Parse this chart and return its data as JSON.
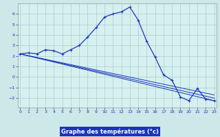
{
  "xlabel": "Graphe des températures (°c)",
  "background_color": "#cce8e8",
  "plot_bg_color": "#d6f0f0",
  "line_color": "#1a35bb",
  "grid_color": "#aacccc",
  "axis_label_bg": "#1a35bb",
  "axis_label_fg": "#ffffff",
  "x_ticks": [
    0,
    1,
    2,
    3,
    4,
    5,
    6,
    7,
    8,
    9,
    10,
    11,
    12,
    13,
    14,
    15,
    16,
    17,
    18,
    19,
    20,
    21,
    22,
    23
  ],
  "y_ticks": [
    -2,
    -1,
    0,
    1,
    2,
    3,
    4,
    5,
    6
  ],
  "xlim": [
    -0.3,
    23.3
  ],
  "ylim": [
    -2.9,
    7.0
  ],
  "main_series_x": [
    0,
    1,
    2,
    3,
    4,
    5,
    6,
    7,
    8,
    9,
    10,
    11,
    12,
    13,
    14,
    15,
    16,
    17,
    18,
    19,
    20,
    21,
    22,
    23
  ],
  "main_series_y": [
    2.2,
    2.3,
    2.2,
    2.6,
    2.5,
    2.2,
    2.6,
    3.0,
    3.8,
    4.7,
    5.7,
    6.0,
    6.2,
    6.65,
    5.4,
    3.4,
    1.9,
    0.2,
    -0.3,
    -1.9,
    -2.25,
    -1.1,
    -2.1,
    -2.25
  ],
  "linear_series": [
    {
      "x": [
        0,
        23
      ],
      "y": [
        2.2,
        -2.25
      ]
    },
    {
      "x": [
        0,
        23
      ],
      "y": [
        2.2,
        -1.7
      ]
    },
    {
      "x": [
        0,
        23
      ],
      "y": [
        2.2,
        -2.0
      ]
    }
  ]
}
